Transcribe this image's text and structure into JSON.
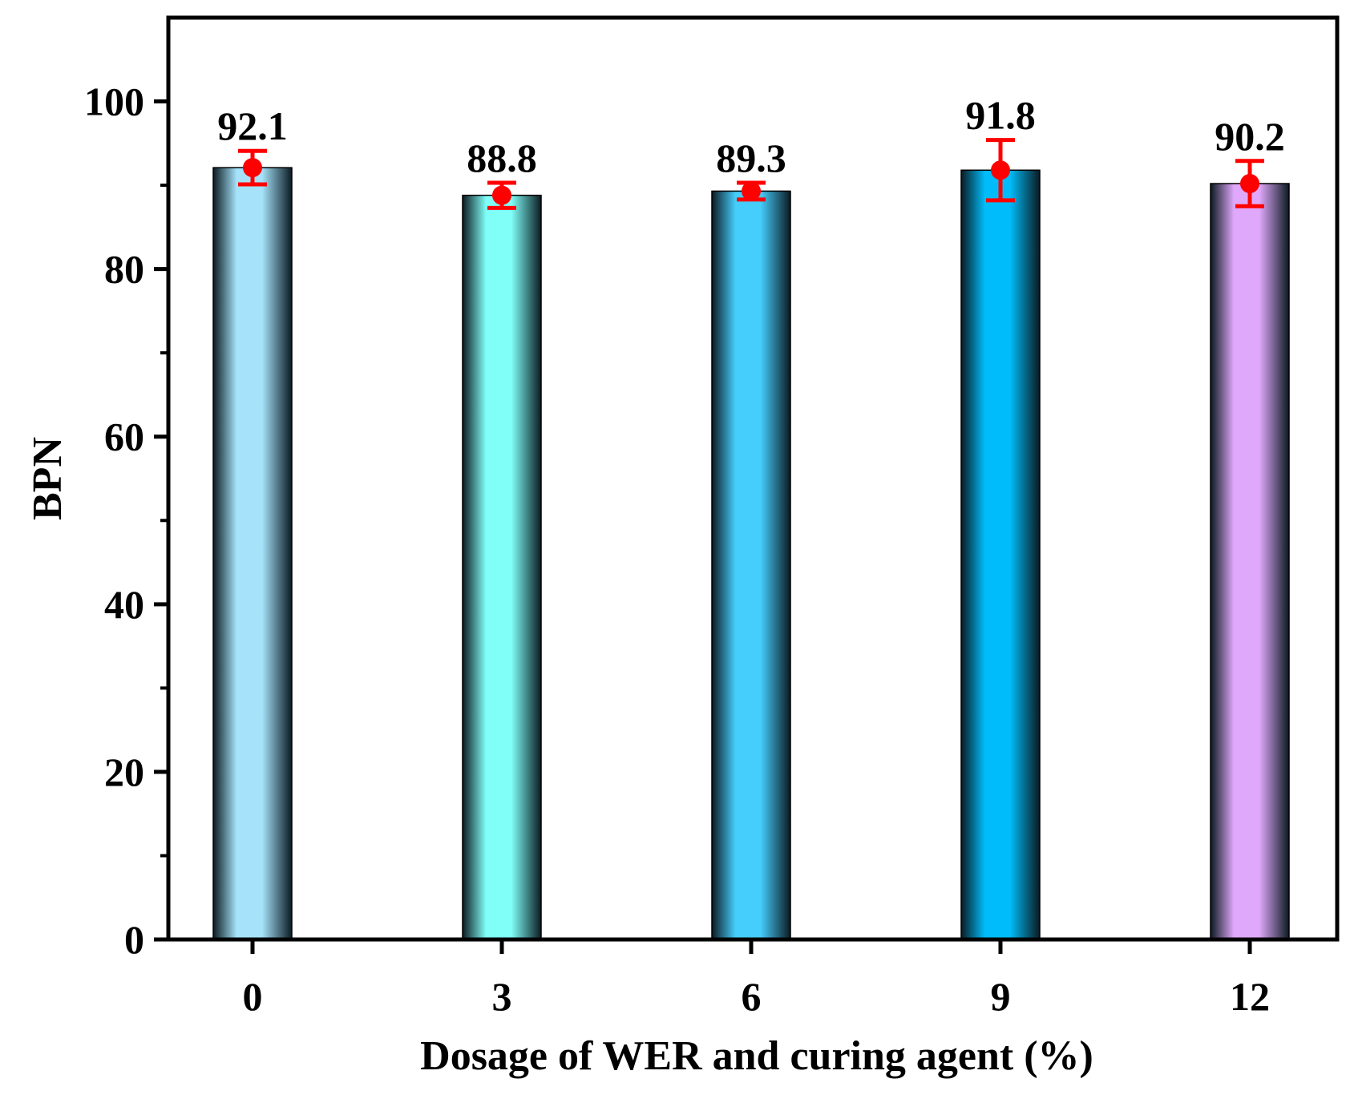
{
  "chart_data": {
    "type": "bar",
    "title": "",
    "xlabel": "Dosage of WER and curing agent  (%)",
    "ylabel": "BPN",
    "categories": [
      "0",
      "3",
      "6",
      "9",
      "12"
    ],
    "values": [
      92.1,
      88.8,
      89.3,
      91.8,
      90.2
    ],
    "value_labels": [
      "92.1",
      "88.8",
      "89.3",
      "91.8",
      "90.2"
    ],
    "error_low": [
      90.1,
      87.3,
      88.3,
      88.2,
      87.5
    ],
    "error_high": [
      94.1,
      90.3,
      90.3,
      95.4,
      92.9
    ],
    "ylim": [
      0,
      110
    ],
    "yticks": [
      0,
      20,
      40,
      60,
      80,
      100
    ],
    "grid": false,
    "legend": "none",
    "bar_colors": [
      "#a6e3fa",
      "#80fff8",
      "#45cdfb",
      "#00bcfa",
      "#e0a8fb"
    ],
    "bar_edge_color": "#0b1a22",
    "error_color": "#ff0000"
  }
}
